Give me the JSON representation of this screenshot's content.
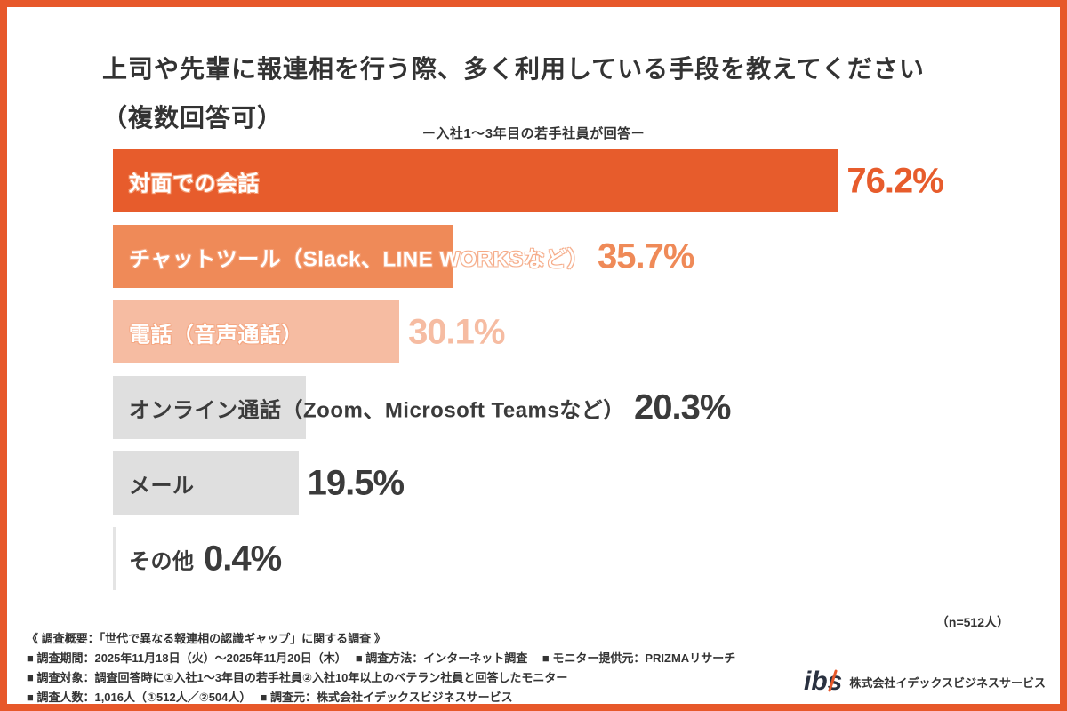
{
  "frame": {
    "border_color": "#E7582A",
    "background": "#FFFFFF"
  },
  "header": {
    "title_line1": "上司や先輩に報連相を行う際、多く利用している手段を教えてください",
    "title_line2": "（複数回答可）",
    "subtitle": "ー入社1〜3年目の若手社員が回答ー"
  },
  "chart_data": {
    "type": "bar",
    "orientation": "horizontal",
    "title": "上司や先輩に報連相を行う際、多く利用している手段を教えてください（複数回答可）",
    "subtitle": "ー入社1〜3年目の若手社員が回答ー",
    "categories": [
      "対面での会話",
      "チャットツール（Slack、LINE WORKSなど）",
      "電話（音声通話）",
      "オンライン通話（Zoom、Microsoft Teamsなど）",
      "メール",
      "その他"
    ],
    "values": [
      76.2,
      35.7,
      30.1,
      20.3,
      19.5,
      0.4
    ],
    "value_labels": [
      "76.2%",
      "35.7%",
      "30.1%",
      "20.3%",
      "19.5%",
      "0.4%"
    ],
    "bar_colors": [
      "#E75C2C",
      "#EF8A58",
      "#F6BCA2",
      "#DFDFDF",
      "#DFDFDF",
      "#E4E4E4"
    ],
    "label_colors": [
      "#FFFFFF",
      "#FFFFFF",
      "#FFFFFF",
      "#3B3B3B",
      "#3B3B3B",
      "#3B3B3B"
    ],
    "value_colors": [
      "#E75C2C",
      "#EF8A58",
      "#F6BCA2",
      "#3B3B3B",
      "#3B3B3B",
      "#3B3B3B"
    ],
    "xlim": [
      0,
      100
    ],
    "grid": false,
    "legend": false,
    "sample_note": "（n=512人）"
  },
  "footer": {
    "lines": [
      "《 調査概要：「世代で異なる報連相の認識ギャップ」に関する調査 》",
      "■ 調査期間：2025年11月18日（火）〜2025年11月20日（木）　 ■ 調査方法：インターネット調査　 ■ モニター提供元：PRIZMAリサーチ",
      "■ 調査対象：調査回答時に①入社1〜3年目の若手社員②入社10年以上のベテラン社員と回答したモニター",
      "■ 調査人数：1,016人（①512人／②504人）　 ■ 調査元：株式会社イデックスビジネスサービス"
    ],
    "logo": {
      "mark": "ibs",
      "company": "株式会社イデックスビジネスサービス"
    }
  }
}
